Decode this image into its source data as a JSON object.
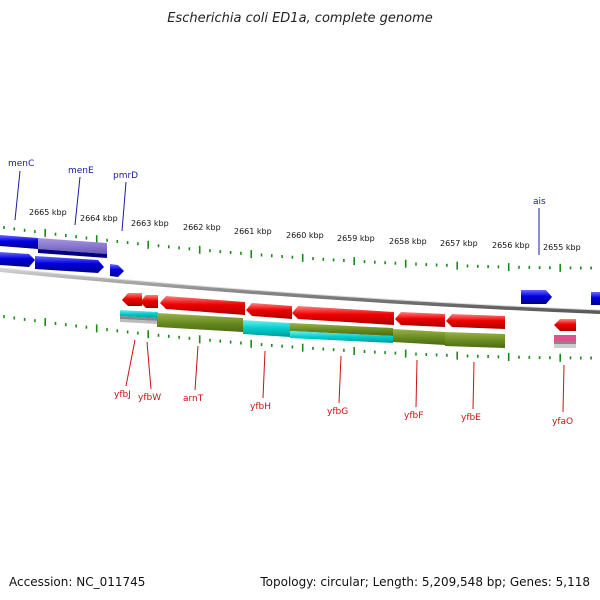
{
  "title": "Escherichia coli ED1a, complete genome",
  "accession_label": "Accession: NC_011745",
  "summary_label": "Topology: circular; Length: 5,209,548 bp; Genes: 5,118",
  "ruler_labels": [
    "2665 kbp",
    "2664 kbp",
    "2663 kbp",
    "2662 kbp",
    "2661 kbp",
    "2660 kbp",
    "2659 kbp",
    "2658 kbp",
    "2657 kbp",
    "2656 kbp",
    "2655 kbp"
  ],
  "genes_forward": [
    "menC",
    "menE",
    "pmrD",
    "ais"
  ],
  "genes_reverse": [
    "yfbJ",
    "yfbW",
    "arnT",
    "yfbH",
    "yfbG",
    "yfbF",
    "yfbE",
    "yfaO"
  ],
  "colors": {
    "forward_strand": "#0000dd",
    "reverse_strand": "#ee0000",
    "ruler_ticks": "#1a8a1a",
    "backbone": "#999999",
    "forward_label": "#1a1aa0",
    "reverse_label": "#cc1111",
    "go_olive": "#6b8e23",
    "go_cyan": "#00cccc",
    "go_purple": "#7b68c8",
    "go_navy": "#000080",
    "go_pink": "#e0508f"
  }
}
